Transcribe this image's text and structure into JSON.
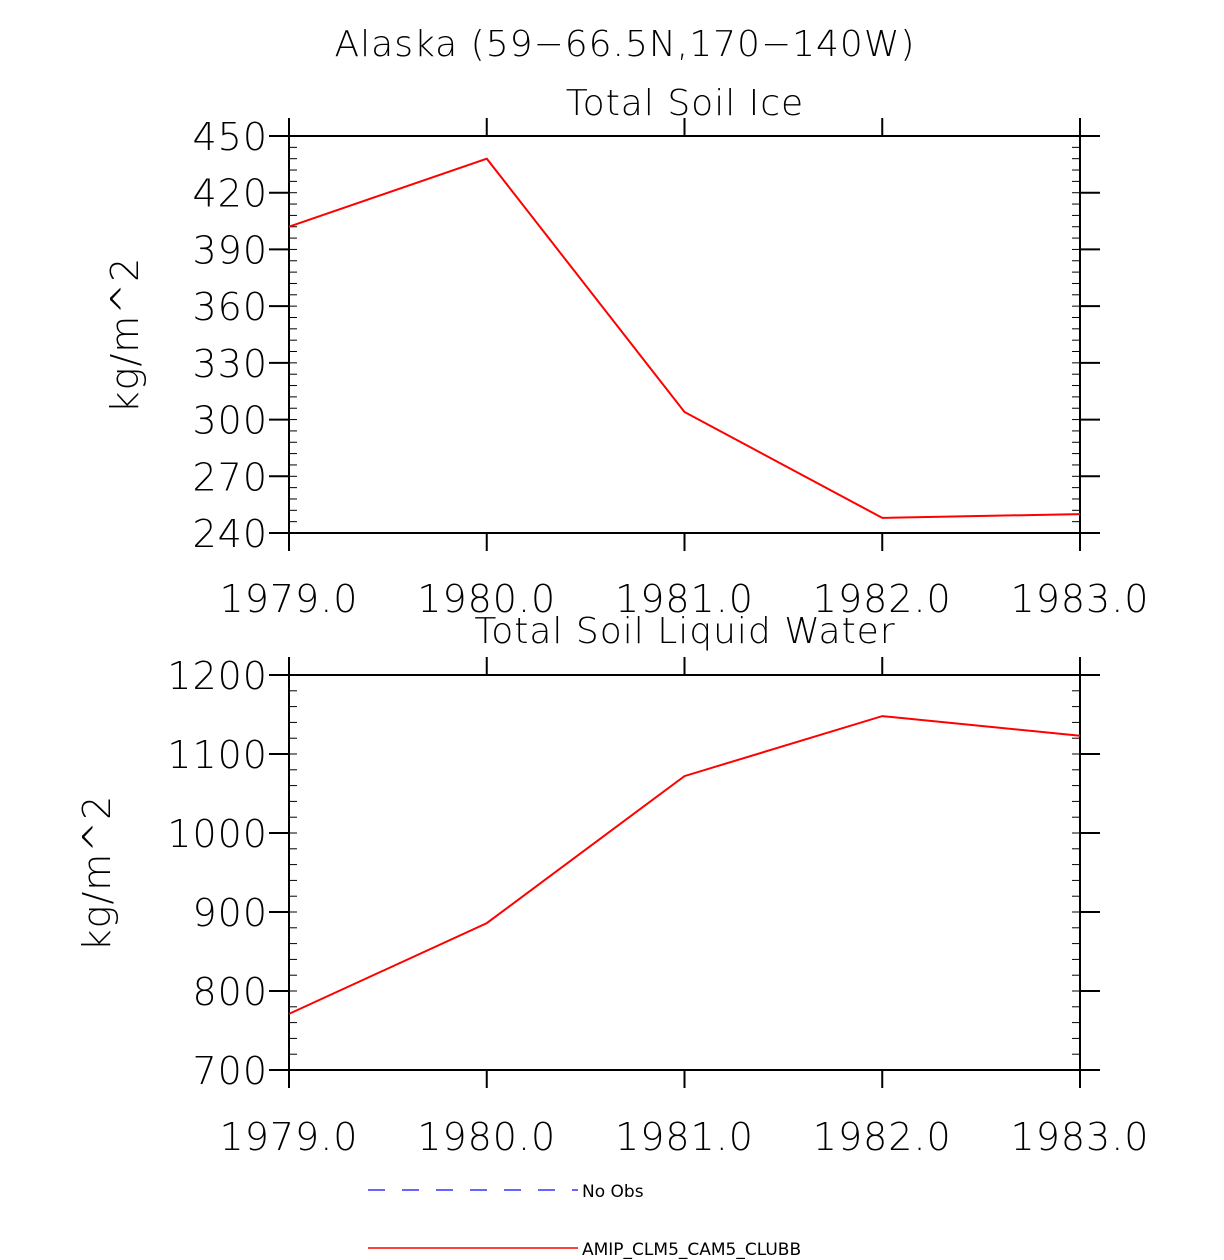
{
  "figure_title": "Alaska (59−66.5N,170−140W)",
  "chart_data": [
    {
      "type": "line",
      "title": "Total Soil Ice",
      "xlabel": "",
      "ylabel": "kg/m^2",
      "xlim": [
        1979,
        1983
      ],
      "ylim": [
        240,
        450
      ],
      "x": [
        1979,
        1980,
        1981,
        1982,
        1983
      ],
      "x_tick_labels": [
        "1979.0",
        "1980.0",
        "1981.0",
        "1982.0",
        "1983.0"
      ],
      "y_ticks": [
        240,
        270,
        300,
        330,
        360,
        390,
        420,
        450
      ],
      "y_minor_step": 6,
      "series": [
        {
          "name": "AMIP_CLM5_CAM5_CLUBB",
          "color": "#ff0000",
          "dash": "solid",
          "values": [
            402,
            438,
            304,
            248,
            250
          ]
        }
      ]
    },
    {
      "type": "line",
      "title": "Total Soil Liquid Water",
      "xlabel": "",
      "ylabel": "kg/m^2",
      "xlim": [
        1979,
        1983
      ],
      "ylim": [
        700,
        1200
      ],
      "x": [
        1979,
        1980,
        1981,
        1982,
        1983
      ],
      "x_tick_labels": [
        "1979.0",
        "1980.0",
        "1981.0",
        "1982.0",
        "1983.0"
      ],
      "y_ticks": [
        700,
        800,
        900,
        1000,
        1100,
        1200
      ],
      "y_minor_step": 20,
      "series": [
        {
          "name": "AMIP_CLM5_CAM5_CLUBB",
          "color": "#ff0000",
          "dash": "solid",
          "values": [
            771,
            886,
            1072,
            1148,
            1123
          ]
        }
      ]
    }
  ],
  "legend": [
    {
      "label": "No Obs",
      "color": "#3333ff",
      "dash": "dashed"
    },
    {
      "label": "AMIP_CLM5_CAM5_CLUBB",
      "color": "#ff0000",
      "dash": "solid"
    }
  ]
}
